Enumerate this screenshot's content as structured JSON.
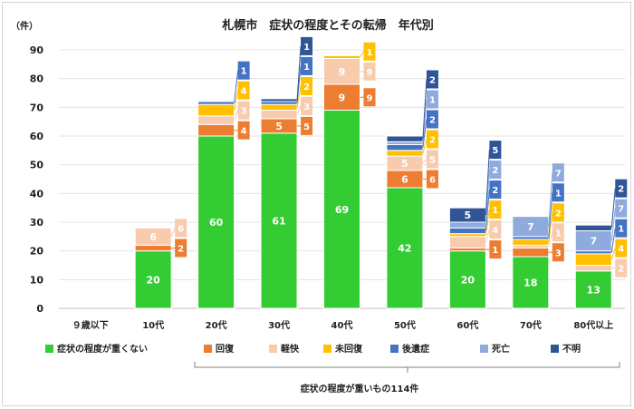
{
  "chart_data": {
    "type": "bar",
    "stacked": true,
    "title": "札幌市　症状の程度とその転帰　年代別",
    "unit_label": "（件）",
    "ylim": [
      0,
      90
    ],
    "yticks": [
      0,
      10,
      20,
      30,
      40,
      50,
      60,
      70,
      80,
      90
    ],
    "grid": true,
    "categories": [
      "９歳以下",
      "10代",
      "20代",
      "30代",
      "40代",
      "50代",
      "60代",
      "70代",
      "80代以上"
    ],
    "series": [
      {
        "name": "症状の程度が重くない",
        "color": "#33cc33",
        "values": [
          0,
          20,
          60,
          61,
          69,
          42,
          20,
          18,
          13
        ]
      },
      {
        "name": "回復",
        "color": "#ed7d31",
        "values": [
          0,
          2,
          4,
          5,
          9,
          6,
          1,
          3,
          0
        ]
      },
      {
        "name": "軽快",
        "color": "#f8cbad",
        "values": [
          0,
          6,
          3,
          3,
          9,
          5,
          4,
          1,
          2
        ]
      },
      {
        "name": "未回復",
        "color": "#ffc000",
        "values": [
          0,
          0,
          4,
          2,
          1,
          2,
          1,
          2,
          4
        ]
      },
      {
        "name": "後遺症",
        "color": "#4472c4",
        "values": [
          0,
          0,
          1,
          1,
          0,
          2,
          2,
          1,
          1
        ]
      },
      {
        "name": "死亡",
        "color": "#8faadc",
        "values": [
          0,
          0,
          0,
          0,
          0,
          1,
          2,
          7,
          7
        ]
      },
      {
        "name": "不明",
        "color": "#2f5597",
        "values": [
          0,
          0,
          0,
          1,
          0,
          2,
          5,
          0,
          2
        ]
      }
    ],
    "legend_position": "bottom",
    "bracket_label": "症状の程度が重いもの114件"
  }
}
